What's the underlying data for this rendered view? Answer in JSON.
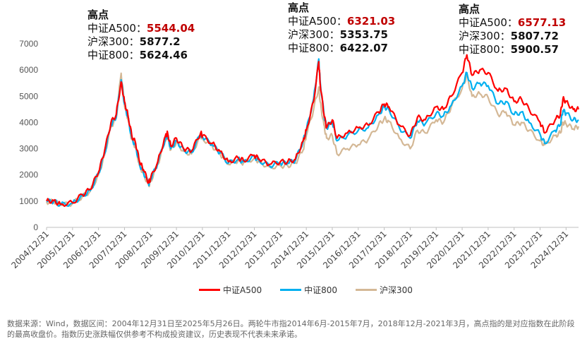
{
  "chart_data": {
    "type": "line",
    "title": "",
    "xlabel": "",
    "ylabel": "",
    "ylim": [
      0,
      7000
    ],
    "yticks": [
      0,
      1000,
      2000,
      3000,
      4000,
      5000,
      6000,
      7000
    ],
    "x_tick_labels": [
      "2004/12/31",
      "2005/12/31",
      "2006/12/31",
      "2007/12/31",
      "2008/12/31",
      "2009/12/31",
      "2010/12/31",
      "2011/12/31",
      "2012/12/31",
      "2013/12/31",
      "2014/12/31",
      "2015/12/31",
      "2016/12/31",
      "2017/12/31",
      "2018/12/31",
      "2019/12/31",
      "2020/12/31",
      "2021/12/31",
      "2022/12/31",
      "2023/12/31",
      "2024/12/31"
    ],
    "x_range": [
      2004.92,
      2025.4
    ],
    "x": [
      2004.92,
      2005.2,
      2005.45,
      2005.92,
      2006.3,
      2006.6,
      2006.92,
      2007.15,
      2007.4,
      2007.6,
      2007.79,
      2007.92,
      2008.05,
      2008.2,
      2008.35,
      2008.5,
      2008.65,
      2008.85,
      2008.92,
      2009.2,
      2009.5,
      2009.58,
      2009.7,
      2009.92,
      2010.2,
      2010.5,
      2010.85,
      2010.92,
      2011.3,
      2011.6,
      2011.92,
      2012.3,
      2012.5,
      2012.92,
      2013.1,
      2013.5,
      2013.92,
      2014.2,
      2014.5,
      2014.8,
      2014.92,
      2015.2,
      2015.4,
      2015.45,
      2015.6,
      2015.7,
      2015.92,
      2016.1,
      2016.5,
      2016.92,
      2017.3,
      2017.7,
      2017.92,
      2018.1,
      2018.5,
      2018.92,
      2019.2,
      2019.5,
      2019.92,
      2020.2,
      2020.5,
      2020.92,
      2021.1,
      2021.3,
      2021.6,
      2021.92,
      2022.3,
      2022.6,
      2022.92,
      2023.2,
      2023.5,
      2023.92,
      2024.1,
      2024.5,
      2024.7,
      2024.8,
      2024.92,
      2025.2,
      2025.4
    ],
    "series": [
      {
        "name": "中证A500",
        "color": "#ff0000",
        "values": [
          1000,
          1020,
          880,
          940,
          1250,
          1450,
          2100,
          2900,
          4000,
          4300,
          5544,
          4800,
          4300,
          3500,
          3200,
          2500,
          2200,
          1700,
          1850,
          2500,
          3500,
          3600,
          3100,
          3400,
          3000,
          2900,
          3600,
          3500,
          3200,
          2900,
          2500,
          2650,
          2550,
          2750,
          2600,
          2400,
          2500,
          2500,
          2600,
          3300,
          3700,
          4800,
          6321,
          5500,
          4300,
          3800,
          4100,
          3400,
          3600,
          3800,
          3900,
          4400,
          4700,
          4600,
          3900,
          3500,
          4200,
          4100,
          4600,
          4500,
          5000,
          5900,
          6577,
          5800,
          6000,
          5900,
          5200,
          5300,
          4800,
          4900,
          4500,
          4000,
          3600,
          4100,
          4300,
          4900,
          4800,
          4500,
          4500
        ]
      },
      {
        "name": "中证800",
        "color": "#00b0f0",
        "values": [
          980,
          1000,
          860,
          920,
          1200,
          1400,
          2050,
          2800,
          3900,
          4200,
          5624,
          4700,
          4200,
          3400,
          3100,
          2400,
          2100,
          1650,
          1800,
          2450,
          3400,
          3500,
          3000,
          3300,
          2950,
          2850,
          3550,
          3450,
          3150,
          2850,
          2450,
          2600,
          2500,
          2700,
          2550,
          2350,
          2450,
          2450,
          2550,
          3300,
          3700,
          4900,
          6422,
          5600,
          4300,
          3800,
          4000,
          3300,
          3500,
          3700,
          3800,
          4300,
          4600,
          4500,
          3800,
          3400,
          4050,
          3950,
          4350,
          4250,
          4650,
          5400,
          5900,
          5300,
          5500,
          5400,
          4700,
          4800,
          4300,
          4400,
          4000,
          3550,
          3200,
          3700,
          3900,
          4450,
          4350,
          4100,
          4100
        ]
      },
      {
        "name": "沪深300",
        "color": "#d4b896",
        "values": [
          970,
          990,
          850,
          910,
          1180,
          1380,
          2000,
          2750,
          3850,
          4150,
          5877,
          4650,
          4150,
          3350,
          3050,
          2350,
          2050,
          1600,
          1750,
          2400,
          3350,
          3450,
          2950,
          3250,
          2900,
          2800,
          3500,
          3400,
          3100,
          2800,
          2400,
          2550,
          2450,
          2650,
          2500,
          2300,
          2350,
          2350,
          2450,
          2950,
          3500,
          4500,
          5353,
          4800,
          3900,
          3400,
          3500,
          2800,
          3000,
          3150,
          3350,
          3900,
          4150,
          4050,
          3400,
          3000,
          3700,
          3600,
          4100,
          4000,
          4600,
          5300,
          5807,
          5000,
          5100,
          4950,
          4300,
          4400,
          3900,
          4000,
          3700,
          3300,
          3150,
          3500,
          3600,
          4000,
          3950,
          3750,
          3850
        ]
      }
    ],
    "annotations": [
      {
        "title": "高点",
        "rows": [
          {
            "label": "中证A500：",
            "value": "5544.04"
          },
          {
            "label": "沪深300：",
            "value": "5877.2"
          },
          {
            "label": "中证800：",
            "value": "5624.46"
          }
        ]
      },
      {
        "title": "高点",
        "rows": [
          {
            "label": "中证A500：",
            "value": "6321.03"
          },
          {
            "label": "沪深300：",
            "value": "5353.75"
          },
          {
            "label": "中证800：",
            "value": "6422.07"
          }
        ]
      },
      {
        "title": "高点",
        "rows": [
          {
            "label": "中证A500：",
            "value": "6577.13"
          },
          {
            "label": "沪深300：",
            "value": "5807.72"
          },
          {
            "label": "中证800：",
            "value": "5900.57"
          }
        ]
      }
    ],
    "legend": [
      "中证A500",
      "中证800",
      "沪深300"
    ],
    "legend_colors": [
      "#ff0000",
      "#00b0f0",
      "#d4b896"
    ],
    "legend_position": "bottom"
  },
  "footnote": "数据来源：Wind，数据区间：2004年12月31日至2025年5月26日。两轮牛市指2014年6月-2015年7月，2018年12月-2021年3月，高点指的是对应指数在此阶段的最高收盘价。指数历史涨跌幅仅供参考不构成投资建议，历史表现不代表未来承诺。"
}
